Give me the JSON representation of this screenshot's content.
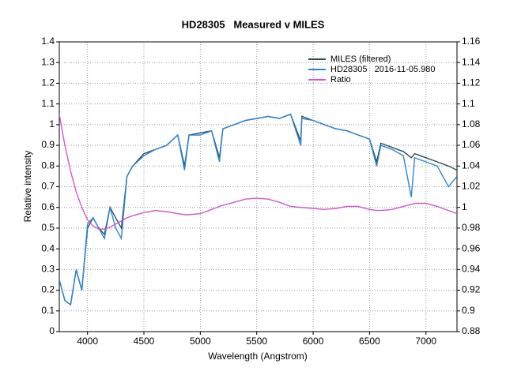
{
  "chart_data": {
    "type": "line",
    "title": "HD28305   Measured v MILES",
    "xlabel": "Wavelength (Angstrom)",
    "ylabel": "Relative intensity",
    "x": [
      3750,
      3800,
      3850,
      3900,
      3950,
      4000,
      4050,
      4100,
      4150,
      4200,
      4250,
      4300,
      4350,
      4400,
      4500,
      4600,
      4700,
      4800,
      4860,
      4900,
      5000,
      5100,
      5170,
      5200,
      5300,
      5400,
      5500,
      5600,
      5700,
      5800,
      5890,
      5900,
      6000,
      6100,
      6200,
      6300,
      6400,
      6500,
      6563,
      6600,
      6700,
      6800,
      6870,
      6900,
      7000,
      7100,
      7200,
      7275
    ],
    "series": [
      {
        "name": "MILES (filtered)",
        "color": "#2f4f4f",
        "values": [
          0.25,
          0.15,
          0.13,
          0.3,
          0.2,
          0.5,
          0.55,
          0.5,
          0.47,
          0.6,
          0.55,
          0.5,
          0.75,
          0.8,
          0.86,
          0.88,
          0.9,
          0.95,
          0.8,
          0.95,
          0.96,
          0.97,
          0.84,
          0.98,
          1.0,
          1.02,
          1.03,
          1.04,
          1.03,
          1.05,
          0.92,
          1.04,
          1.02,
          1.0,
          0.98,
          0.97,
          0.95,
          0.93,
          0.82,
          0.91,
          0.89,
          0.87,
          0.84,
          0.86,
          0.84,
          0.82,
          0.8,
          0.78
        ]
      },
      {
        "name": "HD28305   2016-11-05.980",
        "color": "#2b86d9",
        "values": [
          0.25,
          0.15,
          0.13,
          0.3,
          0.2,
          0.52,
          0.55,
          0.5,
          0.45,
          0.6,
          0.5,
          0.45,
          0.75,
          0.8,
          0.85,
          0.88,
          0.9,
          0.95,
          0.78,
          0.95,
          0.95,
          0.97,
          0.82,
          0.98,
          1.0,
          1.02,
          1.03,
          1.04,
          1.03,
          1.05,
          0.9,
          1.03,
          1.02,
          1.0,
          0.98,
          0.97,
          0.95,
          0.93,
          0.8,
          0.9,
          0.88,
          0.85,
          0.65,
          0.84,
          0.82,
          0.8,
          0.7,
          0.75
        ]
      },
      {
        "name": "Ratio",
        "color": "#d058c8",
        "axis": "y2",
        "values": [
          1.09,
          1.06,
          1.035,
          1.015,
          1.0,
          0.988,
          0.982,
          0.979,
          0.979,
          0.981,
          0.984,
          0.987,
          0.99,
          0.992,
          0.995,
          0.997,
          0.996,
          0.994,
          0.993,
          0.993,
          0.994,
          0.998,
          1.001,
          1.002,
          1.005,
          1.008,
          1.009,
          1.008,
          1.005,
          1.001,
          1.0,
          1.0,
          0.999,
          0.998,
          0.999,
          1.001,
          1.001,
          0.998,
          0.997,
          0.997,
          0.998,
          1.001,
          1.003,
          1.004,
          1.004,
          1.001,
          0.997,
          0.994
        ]
      }
    ],
    "xlim": [
      3750,
      7275
    ],
    "xticks": [
      4000,
      4500,
      5000,
      5500,
      6000,
      6500,
      7000
    ],
    "ylim": [
      0,
      1.4
    ],
    "yticks": [
      0,
      0.1,
      0.2,
      0.3,
      0.4,
      0.5,
      0.6,
      0.7,
      0.8,
      0.9,
      1,
      1.1,
      1.2,
      1.3,
      1.4
    ],
    "y2lim": [
      0.88,
      1.16
    ],
    "y2ticks": [
      0.88,
      0.9,
      0.92,
      0.94,
      0.96,
      0.98,
      1,
      1.02,
      1.04,
      1.06,
      1.08,
      1.1,
      1.12,
      1.14,
      1.16
    ],
    "grid": true,
    "legend": "upper right"
  }
}
